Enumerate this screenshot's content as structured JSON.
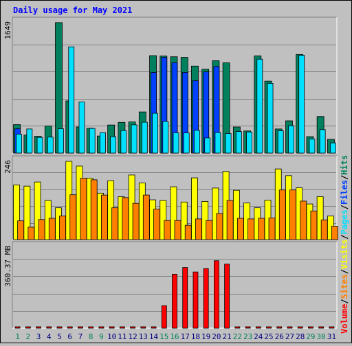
{
  "chart_data": {
    "type": "bar",
    "title": "Daily usage for May 2021",
    "colors": {
      "background": "#c0c0c0",
      "border": "#000000",
      "gridline": "#7f7f7f",
      "title": "#0000ff",
      "hits": "#00805c",
      "files": "#0040ff",
      "pages": "#00e0ff",
      "visits": "#ffff00",
      "sites": "#ff8000",
      "volume": "#ff0000",
      "weekend_label": "#00805c",
      "weekday_label": "#000080"
    },
    "categories": [
      "1",
      "2",
      "3",
      "4",
      "5",
      "6",
      "7",
      "8",
      "9",
      "10",
      "11",
      "12",
      "13",
      "14",
      "15",
      "16",
      "17",
      "18",
      "19",
      "20",
      "21",
      "22",
      "23",
      "24",
      "25",
      "26",
      "27",
      "28",
      "29",
      "30",
      "31"
    ],
    "weekend_days": [
      "1",
      "2",
      "8",
      "9",
      "15",
      "16",
      "22",
      "23",
      "29",
      "30"
    ],
    "panels": [
      {
        "id": "top",
        "y_tick_label": "1649",
        "ylim": [
          0,
          1649
        ],
        "series": [
          {
            "name": "Hits",
            "color_key": "hits",
            "values": [
              360,
              228,
              212,
              342,
              1650,
              660,
              330,
              315,
              216,
              355,
              388,
              394,
              520,
              1232,
              1228,
              1218,
              1210,
              1100,
              1060,
              1168,
              1142,
              330,
              280,
              1230,
              910,
              305,
              408,
              1247,
              208,
              462,
              174
            ]
          },
          {
            "name": "Files",
            "color_key": "files",
            "values": [
              309,
              0,
              0,
              0,
              0,
              0,
              0,
              0,
              0,
              0,
              0,
              0,
              0,
              1020,
              1211,
              1143,
              1020,
              917,
              1027,
              1097,
              0,
              0,
              0,
              0,
              0,
              0,
              0,
              0,
              0,
              0,
              0
            ]
          },
          {
            "name": "Pages",
            "color_key": "pages",
            "values": [
              240,
              305,
              198,
              202,
              308,
              1343,
              646,
              312,
              260,
              208,
              285,
              357,
              390,
              503,
              400,
              257,
              255,
              288,
              192,
              260,
              248,
              273,
              267,
              1187,
              882,
              282,
              346,
              1237,
              178,
              297,
              129
            ]
          }
        ]
      },
      {
        "id": "middle",
        "y_tick_label": "246",
        "ylim": [
          0,
          246
        ],
        "series": [
          {
            "name": "Visits",
            "color_key": "visits",
            "values": [
              172,
              168,
              181,
              123,
              100,
              246,
              231,
              193,
              146,
              185,
              135,
              203,
              178,
              125,
              123,
              166,
              118,
              194,
              120,
              162,
              214,
              155,
              115,
              100,
              124,
              222,
              201,
              163,
              112,
              135,
              74
            ]
          },
          {
            "name": "Sites",
            "color_key": "sites",
            "values": [
              59,
              39,
              63,
              67,
              74,
              141,
              193,
              188,
              140,
              100,
              132,
              114,
              140,
              96,
              60,
              60,
              45,
              65,
              60,
              82,
              123,
              67,
              65,
              67,
              68,
              156,
              156,
              121,
              90,
              62,
              42
            ]
          }
        ]
      },
      {
        "id": "bottom",
        "y_tick_label": "360.37 MB",
        "ylim": [
          0,
          360.37
        ],
        "series": [
          {
            "name": "Volume",
            "color_key": "volume",
            "values": [
              4,
              1,
              1,
              1,
              4,
              1,
              1,
              1,
              1,
              1,
              1,
              1,
              1,
              1,
              100,
              240,
              270,
              250,
              265,
              300,
              285,
              1,
              1,
              1,
              3,
              1,
              1,
              3,
              3,
              3,
              1
            ]
          }
        ]
      }
    ],
    "legend": {
      "placement": "right",
      "separator": "/",
      "items": [
        {
          "label": "Volume",
          "color_key": "volume"
        },
        {
          "label": "Sites",
          "color_key": "sites"
        },
        {
          "label": "Visits",
          "color_key": "visits"
        },
        {
          "label": "Pages",
          "color_key": "pages"
        },
        {
          "label": "Files",
          "color_key": "files"
        },
        {
          "label": "Hits",
          "color_key": "hits"
        }
      ]
    },
    "grid": true
  }
}
